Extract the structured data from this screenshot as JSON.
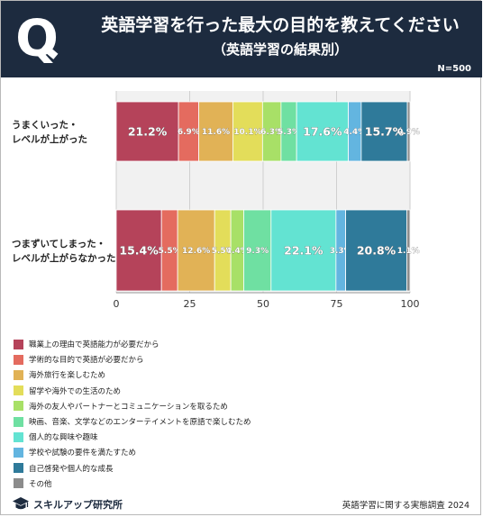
{
  "header": {
    "q_mark": "Q",
    "title": "英語学習を行った最大の目的を教えてください",
    "subtitle": "（英語学習の結果別）",
    "sample_size": "N=500"
  },
  "colors": {
    "header_bg": "#1d2b3f",
    "categories": [
      "#b5435a",
      "#e46b5f",
      "#e1b256",
      "#e3dd5a",
      "#a8e067",
      "#6fe0a2",
      "#63e3d2",
      "#63b5e0",
      "#2f7a9a",
      "#8c8c8c"
    ]
  },
  "chart_data": {
    "type": "bar",
    "orientation": "horizontal",
    "stacked": true,
    "categories": [
      "うまくいった・\nレベルが上がった",
      "つまずいてしまった・\nレベルが上がらなかった"
    ],
    "series": [
      {
        "name": "職業上の理由で英語能力が必要だから",
        "values": [
          21.2,
          15.4
        ],
        "labels": [
          "21.2%",
          "15.4%"
        ]
      },
      {
        "name": "学術的な目的で英語が必要だから",
        "values": [
          6.9,
          5.5
        ],
        "labels": [
          "6.9%",
          "5.5%"
        ]
      },
      {
        "name": "海外旅行を楽しむため",
        "values": [
          11.6,
          12.6
        ],
        "labels": [
          "11.6%",
          "12.6%"
        ]
      },
      {
        "name": "留学や海外での生活のため",
        "values": [
          10.1,
          5.5
        ],
        "labels": [
          "10.1%",
          "5.5%"
        ]
      },
      {
        "name": "海外の友人やパートナーとコミュニケーションを取るため",
        "values": [
          6.3,
          4.4
        ],
        "labels": [
          "6.3%",
          "4.4%"
        ]
      },
      {
        "name": "映画、音楽、文学などのエンターテイメントを原語で楽しむため",
        "values": [
          5.3,
          9.3
        ],
        "labels": [
          "5.3%",
          "9.3%"
        ]
      },
      {
        "name": "個人的な興味や趣味",
        "values": [
          17.6,
          22.1
        ],
        "labels": [
          "17.6%",
          "22.1%"
        ]
      },
      {
        "name": "学校や試験の要件を満たすため",
        "values": [
          4.4,
          3.3
        ],
        "labels": [
          "4.4%",
          "3.3%"
        ]
      },
      {
        "name": "自己啓発や個人的な成長",
        "values": [
          15.7,
          20.8
        ],
        "labels": [
          "15.7%",
          "20.8%"
        ]
      },
      {
        "name": "その他",
        "values": [
          0.9,
          1.1
        ],
        "labels": [
          "0.9%",
          "1.1%"
        ]
      }
    ],
    "xlim": [
      0,
      100
    ],
    "xticks": [
      0,
      25,
      50,
      75,
      100
    ],
    "xtick_labels": [
      "0",
      "25",
      "50",
      "75",
      "100"
    ],
    "grid": true,
    "legend_position": "bottom-left"
  },
  "footer": {
    "brand": "スキルアップ研究所",
    "source": "英語学習に関する実態調査 2024"
  }
}
